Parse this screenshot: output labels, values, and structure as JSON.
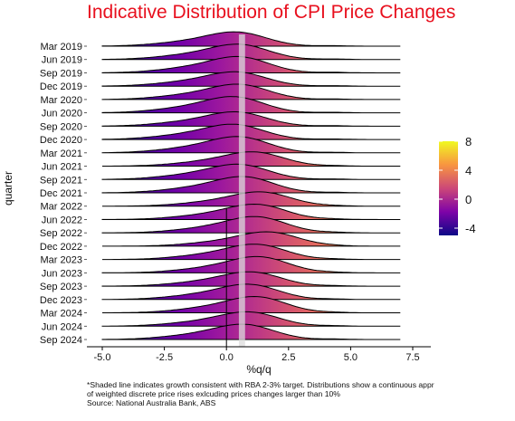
{
  "chart_data": {
    "type": "ridgeline",
    "title": "Indicative Distribution of CPI Price Changes",
    "xlabel": "%q/q",
    "ylabel": "quarter",
    "xlim": [
      -5.0,
      7.5
    ],
    "x_ticks": [
      "-5.0",
      "-2.5",
      "0.0",
      "2.5",
      "5.0",
      "7.5"
    ],
    "x_tick_values": [
      -5.0,
      -2.5,
      0.0,
      2.5,
      5.0,
      7.5
    ],
    "categories": [
      "Mar 2019",
      "Jun 2019",
      "Sep 2019",
      "Dec 2019",
      "Mar 2020",
      "Jun 2020",
      "Sep 2020",
      "Dec 2020",
      "Mar 2021",
      "Jun 2021",
      "Sep 2021",
      "Dec 2021",
      "Mar 2022",
      "Jun 2022",
      "Sep 2022",
      "Dec 2022",
      "Mar 2023",
      "Jun 2023",
      "Sep 2023",
      "Dec 2023",
      "Mar 2024",
      "Jun 2024",
      "Sep 2024"
    ],
    "peaks": [
      0.5,
      0.6,
      0.6,
      0.5,
      0.6,
      0.4,
      0.5,
      0.4,
      0.6,
      1.2,
      0.6,
      0.8,
      1.5,
      1.3,
      1.3,
      1.8,
      1.3,
      1.4,
      1.1,
      1.0,
      1.3,
      1.0,
      0.8
    ],
    "target_band": [
      0.5,
      0.75
    ],
    "reference_line_x": 0,
    "colorbar": {
      "label_values": [
        8,
        4,
        0,
        -4
      ],
      "labels": [
        "8",
        "4",
        "0",
        "-4"
      ],
      "range": [
        -5,
        8
      ]
    }
  },
  "colors": {
    "title": "#e8101e",
    "band": "#dcdcdc"
  },
  "footnote": {
    "line1": "*Shaded line indicates growth consistent with RBA 2-3% target. Distributions show a continuous appr",
    "line2": "of weighted discrete price rises exlcuding prices changes larger than 10%",
    "line3": "Source: National Australia Bank, ABS"
  }
}
